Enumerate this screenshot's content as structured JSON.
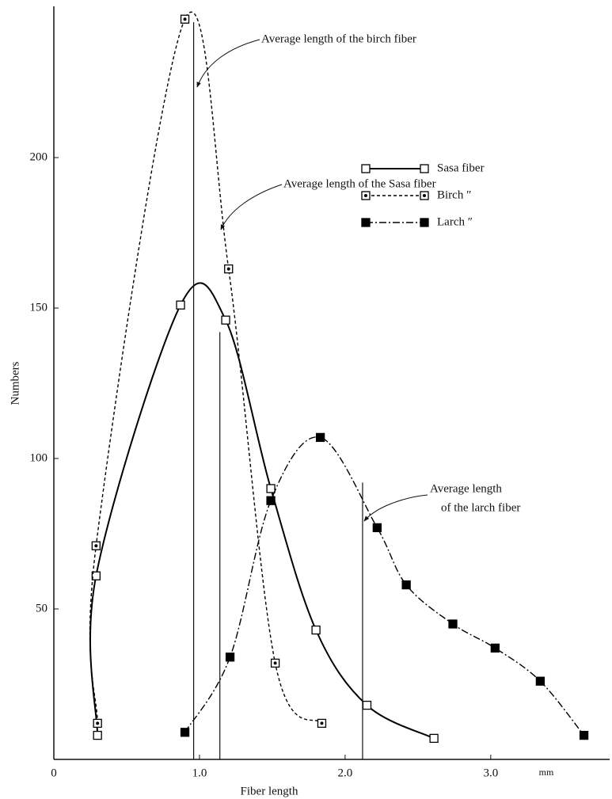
{
  "chart_data": {
    "type": "line",
    "x_label": "Fiber length",
    "y_label": "Numbers",
    "x_unit": "mm",
    "xlim": [
      0,
      3.8
    ],
    "ylim": [
      0,
      250
    ],
    "xticks": [
      0,
      {
        "value": 1,
        "label": "1.0"
      },
      {
        "value": 2,
        "label": "2.0"
      },
      {
        "value": 3,
        "label": "3.0"
      }
    ],
    "yticks": [
      50,
      100,
      150,
      200
    ],
    "legend": "upper right",
    "series": [
      {
        "name": "Sasa fiber",
        "color": "#000000",
        "style": "solid",
        "marker": "open-square",
        "x": [
          0.3,
          0.29,
          0.87,
          1.18,
          1.49,
          1.8,
          2.15,
          2.61
        ],
        "values": [
          8,
          61,
          151,
          146,
          90,
          43,
          18,
          7
        ]
      },
      {
        "name": "Birch  ″",
        "color": "#000000",
        "style": "dashed",
        "marker": "dot-square",
        "x": [
          0.3,
          0.29,
          0.9,
          1.2,
          1.52,
          1.84
        ],
        "values": [
          12,
          71,
          246,
          163,
          32,
          12
        ]
      },
      {
        "name": "Larch  ″",
        "color": "#000000",
        "style": "dashdot",
        "marker": "filled-square",
        "x": [
          0.9,
          1.21,
          1.49,
          1.83,
          2.22,
          2.42,
          2.74,
          3.03,
          3.34,
          3.64
        ],
        "values": [
          9,
          34,
          86,
          107,
          77,
          58,
          45,
          37,
          26,
          8
        ]
      }
    ],
    "average_lines": [
      {
        "label": "Average length of the birch fiber",
        "x": 0.96,
        "y": 245
      },
      {
        "label": "Average length of the Sasa fiber",
        "x": 1.14,
        "y": 142
      },
      {
        "label": [
          "Average length",
          "of the larch fiber"
        ],
        "x": 2.12,
        "y": 92
      }
    ]
  }
}
